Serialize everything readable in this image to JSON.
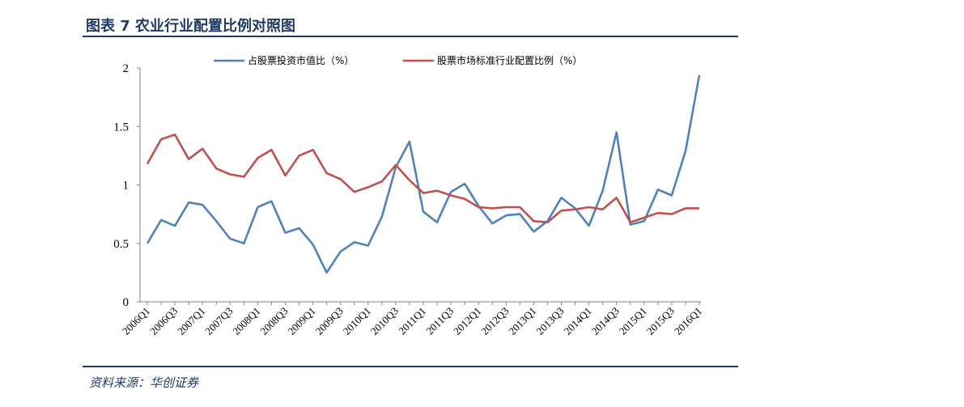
{
  "header": {
    "title": "图表 7 农业行业配置比例对照图"
  },
  "footer": {
    "source": "资料来源：华创证券"
  },
  "chart_data": {
    "type": "line",
    "title": "",
    "xlabel": "",
    "ylabel": "",
    "ylim": [
      0,
      2
    ],
    "yticks": [
      "0",
      "0.5",
      "1",
      "1.5",
      "2"
    ],
    "legend_position": "top",
    "grid": false,
    "x_tick_labels": [
      "2006Q1",
      "2006Q3",
      "2007Q1",
      "2007Q3",
      "2008Q1",
      "2008Q3",
      "2009Q1",
      "2009Q3",
      "2010Q1",
      "2010Q3",
      "2011Q1",
      "2011Q3",
      "2012Q1",
      "2012Q3",
      "2013Q1",
      "2013Q3",
      "2014Q1",
      "2014Q3",
      "2015Q1",
      "2015Q3",
      "2016Q1"
    ],
    "categories": [
      "2006Q1",
      "2006Q2",
      "2006Q3",
      "2006Q4",
      "2007Q1",
      "2007Q2",
      "2007Q3",
      "2007Q4",
      "2008Q1",
      "2008Q2",
      "2008Q3",
      "2008Q4",
      "2009Q1",
      "2009Q2",
      "2009Q3",
      "2009Q4",
      "2010Q1",
      "2010Q2",
      "2010Q3",
      "2010Q4",
      "2011Q1",
      "2011Q2",
      "2011Q3",
      "2011Q4",
      "2012Q1",
      "2012Q2",
      "2012Q3",
      "2012Q4",
      "2013Q1",
      "2013Q2",
      "2013Q3",
      "2013Q4",
      "2014Q1",
      "2014Q2",
      "2014Q3",
      "2014Q4",
      "2015Q1",
      "2015Q2",
      "2015Q3",
      "2015Q4",
      "2016Q1"
    ],
    "series": [
      {
        "name": "占股票投资市值比（%）",
        "color": "#4f81bd",
        "values": [
          0.5,
          0.7,
          0.65,
          0.85,
          0.83,
          0.69,
          0.54,
          0.5,
          0.81,
          0.86,
          0.59,
          0.63,
          0.49,
          0.25,
          0.43,
          0.51,
          0.48,
          0.73,
          1.15,
          1.37,
          0.77,
          0.68,
          0.94,
          1.01,
          0.82,
          0.67,
          0.74,
          0.75,
          0.6,
          0.69,
          0.89,
          0.8,
          0.65,
          0.95,
          1.45,
          0.66,
          0.69,
          0.96,
          0.91,
          1.29,
          1.94
        ]
      },
      {
        "name": "股票市场标准行业配置比例（%）",
        "color": "#c0504d",
        "values": [
          1.18,
          1.39,
          1.43,
          1.22,
          1.31,
          1.14,
          1.09,
          1.07,
          1.23,
          1.3,
          1.08,
          1.25,
          1.3,
          1.1,
          1.05,
          0.94,
          0.98,
          1.03,
          1.17,
          1.04,
          0.93,
          0.95,
          0.91,
          0.88,
          0.81,
          0.8,
          0.81,
          0.81,
          0.69,
          0.68,
          0.78,
          0.79,
          0.81,
          0.79,
          0.89,
          0.68,
          0.72,
          0.76,
          0.75,
          0.8,
          0.8
        ]
      }
    ]
  }
}
